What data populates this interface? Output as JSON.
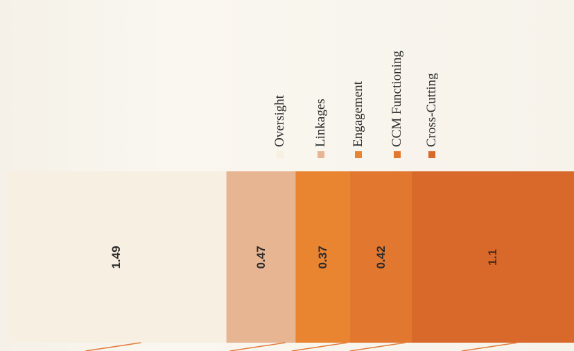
{
  "chart_data": {
    "type": "bar",
    "orientation": "horizontal-stacked",
    "series": [
      {
        "name": "Oversight",
        "value": 1.49,
        "label": "1.49",
        "color": "#f6efe2"
      },
      {
        "name": "Linkages",
        "value": 0.47,
        "label": "0.47",
        "color": "#e8b592"
      },
      {
        "name": "Engagement",
        "value": 0.37,
        "label": "0.37",
        "color": "#e98431"
      },
      {
        "name": "CCM Functioning",
        "value": 0.42,
        "label": "0.42",
        "color": "#e27730"
      },
      {
        "name": "Cross-Cutting",
        "value": 1.1,
        "label": "1.1",
        "color": "#d9692a"
      }
    ],
    "legend_position": "top",
    "label_rotation": "vertical"
  }
}
